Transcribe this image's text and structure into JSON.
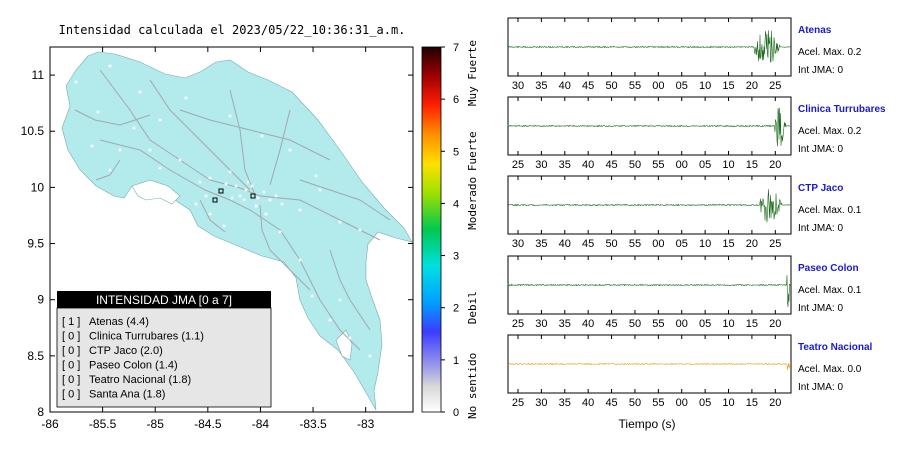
{
  "map": {
    "title": "Intensidad calculada el 2023/05/22_10:36:31_a.m.",
    "x_ticks": [
      "-86",
      "-85.5",
      "-85",
      "-84.5",
      "-84",
      "-83.5",
      "-83"
    ],
    "y_ticks": [
      "11",
      "10.5",
      "10",
      "9.5",
      "9",
      "8.5",
      "8"
    ],
    "xlim": [
      -86.0,
      -82.55
    ],
    "ylim": [
      8.0,
      11.25
    ],
    "land_color": "#b3ebec",
    "colorbar": {
      "ticks": [
        "0",
        "1",
        "2",
        "3",
        "4",
        "5",
        "6",
        "7"
      ],
      "labels": [
        {
          "text": "No sentido",
          "value": 0.5
        },
        {
          "text": "Debil",
          "value": 2.0
        },
        {
          "text": "Moderado",
          "value": 4.0
        },
        {
          "text": "Fuerte",
          "value": 5.0
        },
        {
          "text": "Muy Fuerte",
          "value": 6.5
        }
      ]
    },
    "legend": {
      "title": "INTENSIDAD JMA [0 a 7]",
      "items": [
        {
          "code": "[ 1 ]",
          "label": "Atenas (4.4)"
        },
        {
          "code": "[ 0 ]",
          "label": "Clinica Turrubares (1.1)"
        },
        {
          "code": "[ 0 ]",
          "label": "CTP Jaco (2.0)"
        },
        {
          "code": "[ 0 ]",
          "label": "Paseo Colon (1.4)"
        },
        {
          "code": "[ 0 ]",
          "label": "Teatro Nacional (1.8)"
        },
        {
          "code": "[ 0 ]",
          "label": "Santa Ana (1.8)"
        }
      ]
    }
  },
  "chart_data": [
    {
      "type": "line",
      "station": "Atenas",
      "accel_text": "Acel. Max. 0.2",
      "jma_text": "Int JMA: 0",
      "color": "#1a6b1a",
      "x_ticks": [
        "30",
        "35",
        "40",
        "45",
        "50",
        "55",
        "00",
        "05",
        "10",
        "15",
        "20",
        "25"
      ],
      "onset_fraction": 0.87,
      "amplitude": 0.75
    },
    {
      "type": "line",
      "station": "Clinica Turrubares",
      "accel_text": "Acel. Max. 0.2",
      "jma_text": "Int JMA: 0",
      "color": "#1a6b1a",
      "x_ticks": [
        "25",
        "30",
        "35",
        "40",
        "45",
        "50",
        "55",
        "00",
        "05",
        "10",
        "15",
        "20"
      ],
      "onset_fraction": 0.94,
      "amplitude": 0.85
    },
    {
      "type": "line",
      "station": "CTP Jaco",
      "accel_text": "Acel. Max. 0.1",
      "jma_text": "Int JMA: 0",
      "color": "#1a6b1a",
      "x_ticks": [
        "30",
        "35",
        "40",
        "45",
        "50",
        "55",
        "00",
        "05",
        "10",
        "15",
        "20",
        "25"
      ],
      "onset_fraction": 0.89,
      "amplitude": 0.7
    },
    {
      "type": "line",
      "station": "Paseo Colon",
      "accel_text": "Acel. Max. 0.1",
      "jma_text": "Int JMA: 0",
      "color": "#1a6b1a",
      "x_ticks": [
        "25",
        "30",
        "35",
        "40",
        "45",
        "50",
        "55",
        "00",
        "05",
        "10",
        "15",
        "20"
      ],
      "onset_fraction": 0.985,
      "amplitude": 0.9
    },
    {
      "type": "line",
      "station": "Teatro Nacional",
      "accel_text": "Acel. Max. 0.0",
      "jma_text": "Int JMA: 0",
      "color": "#f0a020",
      "x_ticks": [
        "25",
        "30",
        "35",
        "40",
        "45",
        "50",
        "55",
        "00",
        "05",
        "10",
        "15",
        "20"
      ],
      "onset_fraction": 0.985,
      "amplitude": 0.45
    }
  ],
  "waveform_xlabel": "Tiempo (s)"
}
